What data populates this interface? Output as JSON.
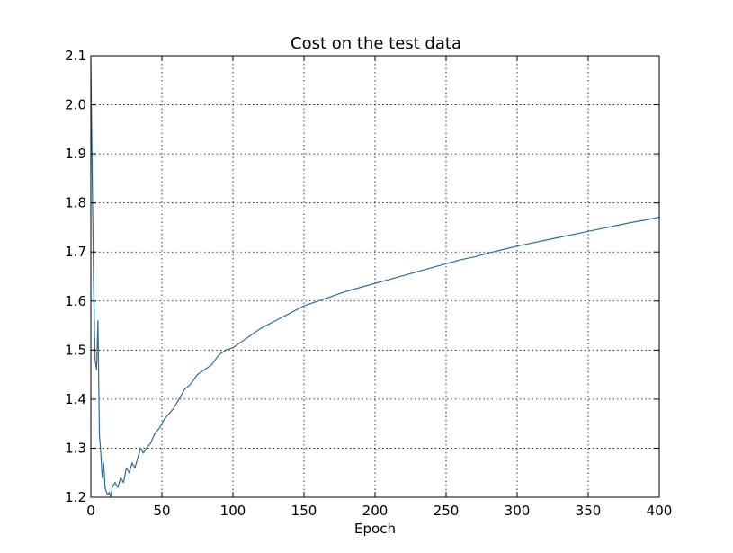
{
  "chart_data": {
    "type": "line",
    "title": "Cost on the test data",
    "xlabel": "Epoch",
    "ylabel": "",
    "xlim": [
      0,
      400
    ],
    "ylim": [
      1.2,
      2.1
    ],
    "xticks": [
      0,
      50,
      100,
      150,
      200,
      250,
      300,
      350,
      400
    ],
    "yticks": [
      1.2,
      1.3,
      1.4,
      1.5,
      1.6,
      1.7,
      1.8,
      1.9,
      2.0,
      2.1
    ],
    "xtick_labels": [
      "0",
      "50",
      "100",
      "150",
      "200",
      "250",
      "300",
      "350",
      "400"
    ],
    "ytick_labels": [
      "1.2",
      "1.3",
      "1.4",
      "1.5",
      "1.6",
      "1.7",
      "1.8",
      "1.9",
      "2.0",
      "2.1"
    ],
    "grid": true,
    "series": [
      {
        "color": "#2c6e99",
        "x": [
          0,
          1,
          2,
          3,
          4,
          5,
          6,
          7,
          8,
          9,
          10,
          11,
          12,
          13,
          14,
          15,
          17,
          19,
          21,
          23,
          25,
          27,
          29,
          31,
          33,
          35,
          37,
          39,
          42,
          45,
          48,
          50,
          52,
          55,
          58,
          62,
          66,
          70,
          75,
          80,
          85,
          90,
          95,
          100,
          110,
          120,
          130,
          140,
          150,
          160,
          170,
          180,
          190,
          200,
          210,
          220,
          230,
          240,
          250,
          260,
          270,
          280,
          290,
          300,
          310,
          320,
          330,
          340,
          350,
          360,
          370,
          380,
          390,
          400
        ],
        "y": [
          2.09,
          1.85,
          1.62,
          1.48,
          1.46,
          1.56,
          1.33,
          1.29,
          1.24,
          1.27,
          1.22,
          1.21,
          1.205,
          1.21,
          1.2,
          1.22,
          1.23,
          1.22,
          1.24,
          1.23,
          1.26,
          1.25,
          1.27,
          1.26,
          1.28,
          1.3,
          1.29,
          1.3,
          1.31,
          1.33,
          1.34,
          1.35,
          1.36,
          1.37,
          1.38,
          1.4,
          1.42,
          1.43,
          1.45,
          1.46,
          1.47,
          1.49,
          1.5,
          1.505,
          1.525,
          1.545,
          1.56,
          1.575,
          1.59,
          1.6,
          1.61,
          1.62,
          1.628,
          1.636,
          1.644,
          1.652,
          1.66,
          1.668,
          1.676,
          1.684,
          1.69,
          1.698,
          1.705,
          1.712,
          1.718,
          1.724,
          1.73,
          1.736,
          1.742,
          1.748,
          1.754,
          1.76,
          1.765,
          1.771
        ]
      }
    ]
  }
}
